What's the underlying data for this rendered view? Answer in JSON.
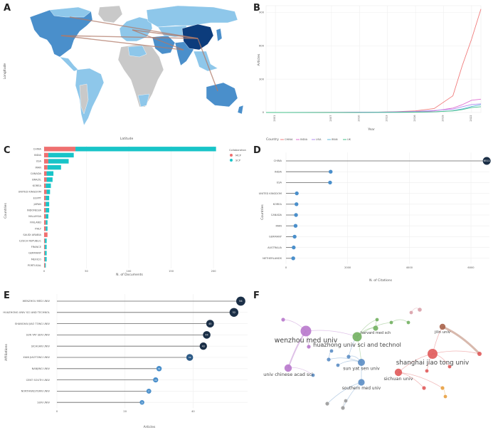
{
  "panels": {
    "A": "A",
    "B": "B",
    "C": "C",
    "D": "D",
    "E": "E",
    "F": "F"
  },
  "colors": {
    "mcp": "#ef7070",
    "scp": "#18c4c8",
    "navy": "#1b2f47",
    "map_china": "#0c3c7c",
    "map_mid": "#4a8fcb",
    "map_light": "#8ec7ea",
    "map_gray": "#c9c9c9",
    "link": "#b07a68"
  },
  "chart_data": [
    {
      "id": "A",
      "type": "map",
      "xlabel": "Latitude",
      "ylabel": "Longitude"
    },
    {
      "id": "B",
      "type": "line",
      "xlabel": "Year",
      "ylabel": "Articles",
      "legend_title": "Country",
      "x": [
        2000,
        2002,
        2004,
        2006,
        2008,
        2010,
        2012,
        2014,
        2016,
        2018,
        2020,
        2021,
        2022,
        2023
      ],
      "xticks": [
        "2001",
        "2007",
        "2010",
        "2013",
        "2016",
        "2019",
        "2022"
      ],
      "yticks": [
        "0",
        "300",
        "600",
        "900"
      ],
      "ylim": [
        0,
        960
      ],
      "legend_entries": [
        "CHINA",
        "INDIA",
        "USA",
        "IRAN",
        "UK"
      ],
      "series": [
        {
          "name": "CHINA",
          "color": "#f07b7b",
          "values": [
            0,
            0,
            0,
            1,
            1,
            2,
            4,
            8,
            15,
            35,
            150,
            420,
            660,
            930
          ]
        },
        {
          "name": "INDIA",
          "color": "#e06fd0",
          "values": [
            0,
            0,
            0,
            0,
            0,
            1,
            2,
            3,
            5,
            14,
            40,
            70,
            110,
            120
          ]
        },
        {
          "name": "USA",
          "color": "#b38cf0",
          "values": [
            0,
            0,
            1,
            1,
            2,
            3,
            4,
            6,
            10,
            18,
            30,
            52,
            72,
            78
          ]
        },
        {
          "name": "IRAN",
          "color": "#5cb8d8",
          "values": [
            0,
            0,
            0,
            0,
            0,
            0,
            1,
            2,
            3,
            6,
            16,
            32,
            54,
            70
          ]
        },
        {
          "name": "UK",
          "color": "#46c08a",
          "values": [
            0,
            0,
            0,
            0,
            0,
            0,
            1,
            1,
            3,
            6,
            14,
            26,
            44,
            52
          ]
        }
      ]
    },
    {
      "id": "C",
      "type": "bar",
      "xlabel": "N. of Documents",
      "ylabel": "Countries",
      "legend_title": "Collaboration",
      "legend": [
        "MCP",
        "SCP"
      ],
      "xticks": [
        "0",
        "50",
        "100",
        "150",
        "200"
      ],
      "xlim": [
        0,
        210
      ],
      "categories": [
        "CHINA",
        "INDIA",
        "USA",
        "IRAN",
        "CANADA",
        "BRAZIL",
        "KOREA",
        "UNITED KINGDOM",
        "EGYPT",
        "JAPAN",
        "INDONESIA",
        "MALAYSIA",
        "FINLAND",
        "ITALY",
        "SAUDI ARABIA",
        "CZECH REPUBLIC",
        "FRANCE",
        "GERMANY",
        "MEXICO",
        "PORTUGAL"
      ],
      "series": [
        {
          "name": "MCP",
          "values": [
            37,
            5,
            5,
            4,
            3,
            3,
            2,
            3,
            2,
            2,
            2,
            2,
            2,
            2,
            4,
            1,
            1,
            1,
            1,
            1
          ]
        },
        {
          "name": "SCP",
          "values": [
            166,
            30,
            24,
            16,
            8,
            7,
            6,
            4,
            4,
            4,
            4,
            3,
            2,
            2,
            0,
            2,
            2,
            2,
            2,
            1
          ]
        }
      ]
    },
    {
      "id": "D",
      "type": "lollipop",
      "xlabel": "N. of Citations",
      "ylabel": "Countries",
      "xticks": [
        "0",
        "2000",
        "4000",
        "6000"
      ],
      "xlim": [
        0,
        6600
      ],
      "categories": [
        "CHINA",
        "INDIA",
        "USA",
        "UNITED KINGDOM",
        "KOREA",
        "CANADA",
        "IRAN",
        "GERMANY",
        "AUSTRALIA",
        "NETHERLANDS"
      ],
      "values": [
        6511,
        1448,
        1430,
        350,
        340,
        325,
        310,
        280,
        250,
        235
      ],
      "value_labels": [
        "6511",
        "",
        "",
        "",
        "",
        "",
        "",
        "",
        "",
        ""
      ]
    },
    {
      "id": "E",
      "type": "lollipop",
      "xlabel": "Articles",
      "ylabel": "Affiliations",
      "xticks": [
        "0",
        "20",
        "40"
      ],
      "xlim": [
        0,
        56
      ],
      "categories": [
        "WENZHOU MED UNIV",
        "HUAZHONG UNIV SCI AND TECHNOL",
        "SHANGHAI JIAO TONG UNIV",
        "SUN YAT SEN UNIV",
        "SICHUAN UNIV",
        "XIAN JIAOTONG UNIV",
        "NANJING UNIV",
        "CENT SOUTH UNIV",
        "NORTHWESTERN UNIV",
        "SUN UNIV"
      ],
      "values": [
        54,
        52,
        45,
        44,
        43,
        39,
        30,
        29,
        27,
        25
      ],
      "value_labels": [
        "54",
        "52",
        "45",
        "44",
        "43",
        "39",
        "30",
        "29",
        "27",
        "25"
      ]
    },
    {
      "id": "F",
      "type": "network",
      "nodes": [
        {
          "label": "wenzhou med univ",
          "c": "#b878cc"
        },
        {
          "label": "huazhong univ sci and technol",
          "c": "#72b060"
        },
        {
          "label": "shanghai jiao tong univ",
          "c": "#e05a5a"
        },
        {
          "label": "sun yat sen univ",
          "c": "#5b8dc4"
        },
        {
          "label": "sichuan univ",
          "c": "#e05a5a"
        },
        {
          "label": "southern med univ",
          "c": "#5b8dc4"
        },
        {
          "label": "univ chinese acad sci",
          "c": "#b878cc"
        },
        {
          "label": "jilin univ",
          "c": "#a8634a"
        },
        {
          "label": "harvard med sch",
          "c": "#72b060"
        },
        {
          "label": "",
          "c": "#5b8dc4"
        },
        {
          "label": "",
          "c": "#5b8dc4"
        },
        {
          "label": "",
          "c": "#5b8dc4"
        },
        {
          "label": "",
          "c": "#72b060"
        },
        {
          "label": "",
          "c": "#72b060"
        },
        {
          "label": "",
          "c": "#e05a5a"
        },
        {
          "label": "",
          "c": "#e05a5a"
        },
        {
          "label": "",
          "c": "#e05a5a"
        },
        {
          "label": "",
          "c": "#e8a040"
        },
        {
          "label": "",
          "c": "#e8a040"
        },
        {
          "label": "",
          "c": "#b878cc"
        },
        {
          "label": "",
          "c": "#b878cc"
        },
        {
          "label": "",
          "c": "#9a9a9a"
        },
        {
          "label": "",
          "c": "#9a9a9a"
        },
        {
          "label": "",
          "c": "#9a9a9a"
        },
        {
          "label": "",
          "c": "#d9a0a8"
        },
        {
          "label": "",
          "c": "#d9a0a8"
        },
        {
          "label": "",
          "c": "#5b8dc4"
        },
        {
          "label": "",
          "c": "#5b8dc4"
        },
        {
          "label": "",
          "c": "#72b060"
        },
        {
          "label": "",
          "c": "#e05a5a"
        }
      ]
    }
  ]
}
